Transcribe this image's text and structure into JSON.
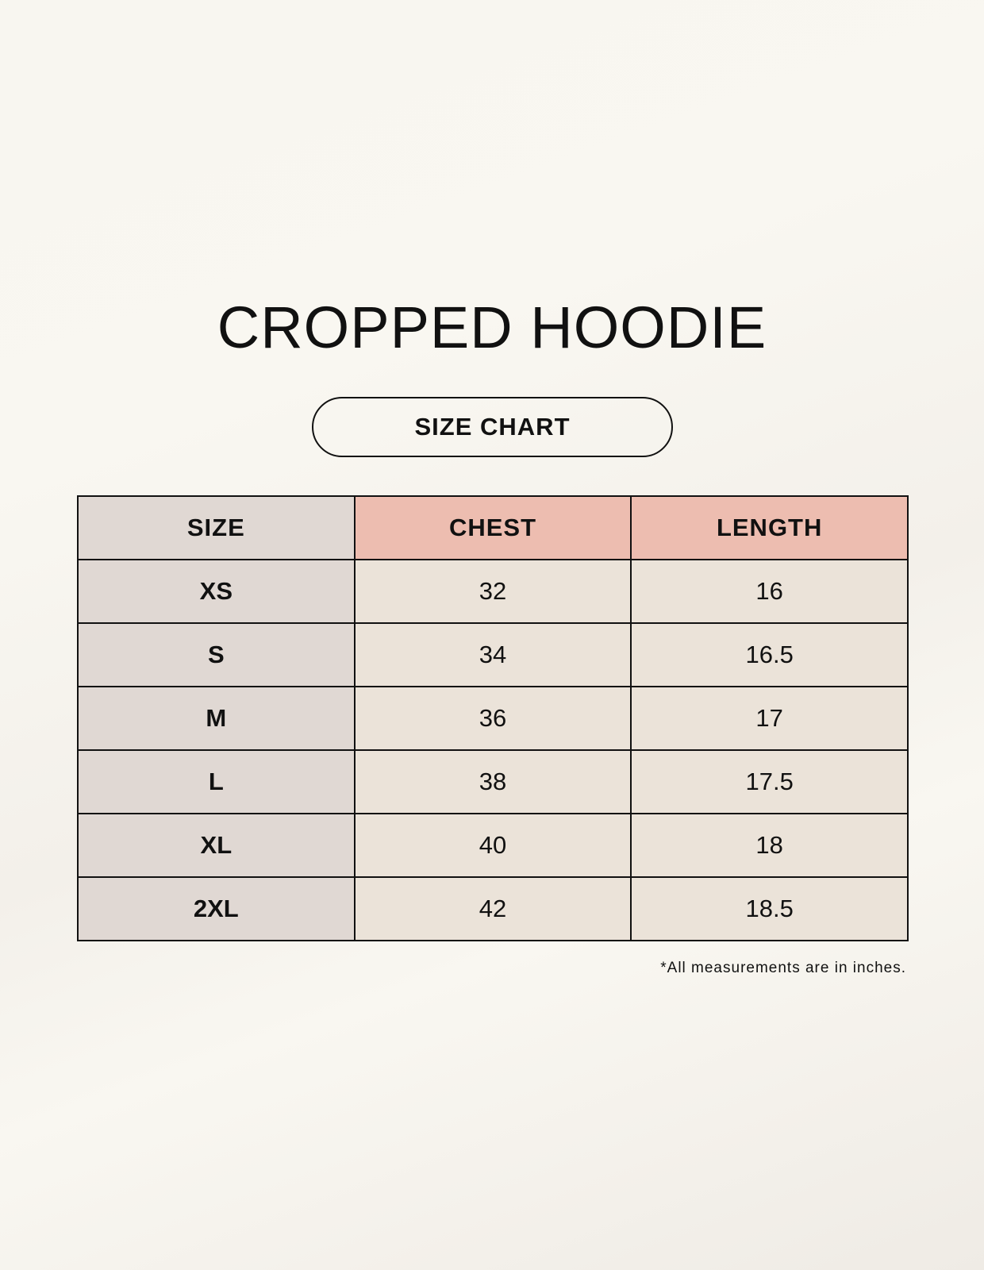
{
  "title": "CROPPED HOODIE",
  "badge": "SIZE CHART",
  "table": {
    "headers": [
      "SIZE",
      "CHEST",
      "LENGTH"
    ],
    "rows": [
      [
        "XS",
        "32",
        "16"
      ],
      [
        "S",
        "34",
        "16.5"
      ],
      [
        "M",
        "36",
        "17"
      ],
      [
        "L",
        "38",
        "17.5"
      ],
      [
        "XL",
        "40",
        "18"
      ],
      [
        "2XL",
        "42",
        "18.5"
      ]
    ]
  },
  "footnote": "*All measurements are in inches.",
  "colors": {
    "size_column": "#e0d8d3",
    "header_accent": "#edbdb0",
    "cell": "#ebe3d9"
  }
}
